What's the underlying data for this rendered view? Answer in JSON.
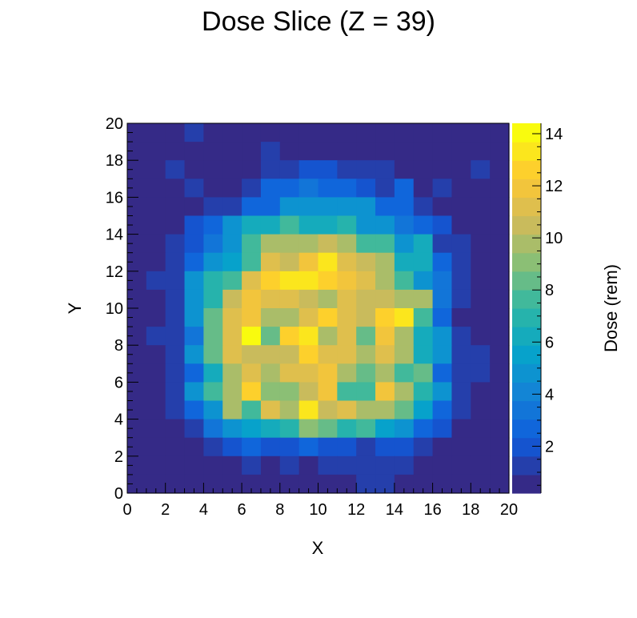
{
  "chart_data": {
    "type": "heatmap",
    "title": "Dose Slice (Z = 39)",
    "xlabel": "X",
    "ylabel": "Y",
    "zlabel": "Dose (rem)",
    "xlim": [
      0,
      20
    ],
    "ylim": [
      0,
      20
    ],
    "zlim": [
      0.2,
      14.4
    ],
    "x_ticks": [
      "0",
      "2",
      "4",
      "6",
      "8",
      "10",
      "12",
      "14",
      "16",
      "18",
      "20"
    ],
    "y_ticks": [
      "0",
      "2",
      "4",
      "6",
      "8",
      "10",
      "12",
      "14",
      "16",
      "18",
      "20"
    ],
    "z_ticks": [
      "2",
      "4",
      "6",
      "8",
      "10",
      "12",
      "14"
    ],
    "grid": false,
    "palette": [
      "#352a87",
      "#0f5cdd",
      "#1481d6",
      "#06a4ca",
      "#2eb7a4",
      "#87bf77",
      "#d1bb59",
      "#fec832",
      "#f9fb0e"
    ],
    "rows_note": "values[0] is the bin row y=19..20 (top); values[19] is y=0..1 (bottom); column i spans x=i..i+1",
    "values": [
      [
        0.5,
        0.5,
        0.5,
        1.5,
        0.5,
        0.5,
        0.5,
        0.5,
        0.5,
        0.5,
        0.5,
        0.5,
        0.5,
        0.5,
        0.5,
        0.5,
        0.5,
        0.5,
        0.5,
        0.5
      ],
      [
        0.5,
        0.5,
        0.5,
        0.5,
        0.5,
        0.5,
        0.5,
        1.5,
        0.5,
        0.5,
        0.5,
        0.5,
        0.5,
        0.5,
        0.5,
        0.5,
        0.5,
        0.5,
        0.5,
        0.5
      ],
      [
        0.5,
        0.5,
        1.5,
        0.5,
        0.5,
        0.5,
        0.5,
        1.5,
        1.5,
        2.0,
        2.0,
        1.5,
        1.5,
        1.5,
        0.5,
        0.5,
        0.5,
        0.5,
        1.5,
        0.5
      ],
      [
        0.5,
        0.5,
        0.5,
        1.5,
        0.5,
        0.5,
        1.5,
        2.5,
        2.5,
        3.5,
        2.5,
        2.5,
        2.0,
        1.5,
        2.5,
        0.5,
        1.5,
        0.5,
        0.5,
        0.5
      ],
      [
        0.5,
        0.5,
        0.5,
        0.5,
        1.5,
        1.5,
        2.5,
        3.0,
        4.5,
        4.5,
        4.5,
        4.5,
        4.5,
        3.0,
        3.0,
        1.5,
        0.5,
        0.5,
        0.5,
        0.5
      ],
      [
        0.5,
        0.5,
        0.5,
        2.0,
        3.0,
        4.5,
        6.0,
        6.0,
        7.5,
        6.0,
        6.0,
        7.0,
        4.5,
        4.5,
        3.5,
        2.5,
        2.0,
        0.5,
        0.5,
        0.5
      ],
      [
        0.5,
        0.5,
        1.5,
        2.0,
        3.5,
        4.5,
        8.0,
        9.5,
        9.5,
        9.5,
        10.5,
        9.5,
        8.0,
        8.0,
        5.0,
        6.0,
        1.5,
        1.5,
        0.5,
        0.5
      ],
      [
        0.5,
        0.5,
        1.5,
        3.0,
        4.5,
        5.5,
        8.0,
        11.0,
        10.5,
        12.0,
        13.0,
        11.5,
        10.5,
        9.5,
        6.5,
        6.5,
        3.0,
        1.5,
        0.5,
        0.5
      ],
      [
        0.5,
        1.5,
        1.5,
        5.0,
        7.0,
        8.0,
        11.0,
        12.5,
        13.0,
        13.5,
        12.5,
        12.0,
        11.5,
        10.0,
        8.0,
        5.0,
        3.5,
        1.5,
        0.5,
        0.5
      ],
      [
        0.5,
        0.5,
        1.5,
        4.5,
        7.0,
        10.5,
        12.0,
        11.0,
        11.0,
        10.5,
        10.0,
        11.0,
        10.5,
        10.5,
        10.0,
        9.5,
        3.5,
        1.5,
        0.5,
        0.5
      ],
      [
        0.5,
        0.5,
        1.5,
        4.5,
        8.5,
        11.5,
        12.0,
        10.0,
        10.0,
        11.0,
        12.5,
        11.5,
        10.5,
        12.5,
        13.5,
        7.5,
        3.0,
        0.5,
        0.5,
        0.5
      ],
      [
        0.5,
        1.5,
        1.5,
        3.5,
        8.5,
        11.0,
        14.4,
        8.5,
        12.5,
        13.0,
        10.0,
        11.0,
        8.5,
        12.0,
        9.5,
        6.5,
        4.5,
        1.5,
        0.5,
        0.5
      ],
      [
        0.5,
        0.5,
        1.5,
        4.5,
        8.5,
        11.5,
        10.5,
        10.5,
        10.5,
        12.5,
        11.0,
        11.0,
        10.0,
        11.5,
        10.0,
        6.0,
        4.5,
        1.5,
        1.5,
        0.5
      ],
      [
        0.5,
        0.5,
        1.5,
        3.0,
        6.0,
        9.5,
        11.0,
        10.0,
        11.5,
        11.0,
        12.0,
        10.0,
        8.5,
        9.5,
        8.0,
        8.5,
        3.0,
        1.5,
        1.5,
        0.5
      ],
      [
        0.5,
        0.5,
        1.5,
        4.5,
        7.5,
        9.5,
        12.5,
        9.0,
        9.0,
        10.5,
        12.0,
        7.5,
        7.5,
        12.0,
        9.5,
        7.0,
        4.5,
        1.5,
        0.5,
        0.5
      ],
      [
        0.5,
        0.5,
        1.5,
        3.0,
        5.0,
        9.5,
        8.0,
        11.5,
        10.0,
        13.5,
        10.5,
        11.0,
        9.5,
        9.5,
        8.5,
        5.5,
        3.0,
        1.5,
        0.5,
        0.5
      ],
      [
        0.5,
        0.5,
        0.5,
        1.5,
        3.5,
        4.5,
        5.5,
        6.0,
        7.0,
        9.0,
        8.5,
        7.0,
        7.5,
        5.5,
        4.5,
        3.0,
        2.0,
        0.5,
        0.5,
        0.5
      ],
      [
        0.5,
        0.5,
        0.5,
        0.5,
        1.5,
        2.0,
        2.5,
        2.0,
        2.0,
        2.5,
        2.0,
        2.0,
        1.5,
        2.0,
        2.0,
        1.5,
        0.5,
        0.5,
        0.5,
        0.5
      ],
      [
        0.5,
        0.5,
        0.5,
        0.5,
        0.5,
        0.5,
        1.5,
        0.5,
        1.5,
        0.5,
        1.5,
        1.5,
        1.5,
        1.5,
        1.5,
        0.5,
        0.5,
        0.5,
        0.5,
        0.5
      ],
      [
        0.5,
        0.5,
        0.5,
        0.5,
        0.5,
        0.5,
        0.5,
        0.5,
        0.5,
        0.5,
        0.5,
        0.5,
        1.5,
        1.5,
        0.5,
        0.5,
        0.5,
        0.5,
        0.5,
        0.5
      ]
    ]
  }
}
